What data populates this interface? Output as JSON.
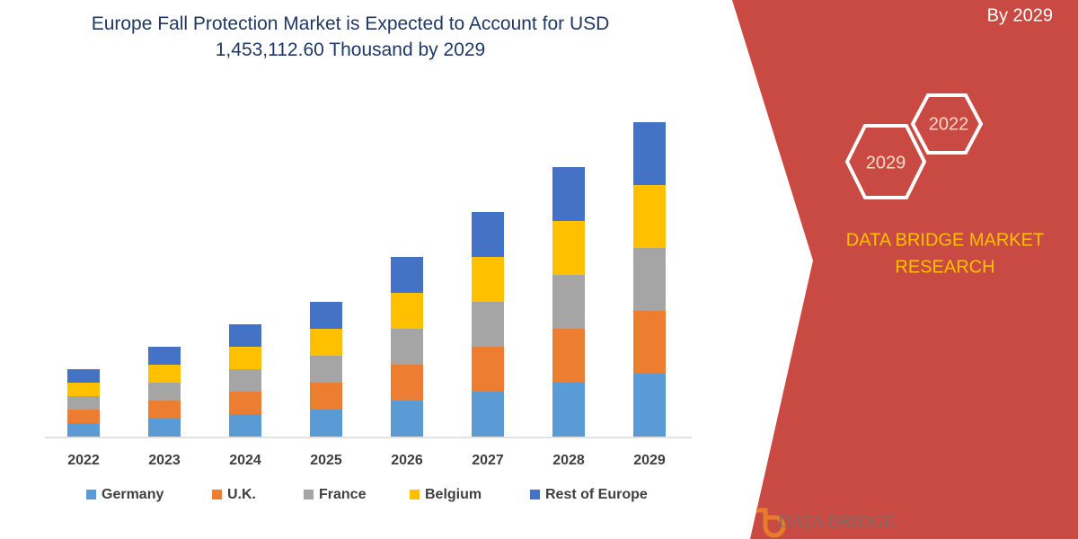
{
  "chart_data": {
    "type": "stacked_bar",
    "title": "Europe Fall Protection Market is Expected to Account for USD 1,453,112.60 Thousand by 2029",
    "categories": [
      "2022",
      "2023",
      "2024",
      "2025",
      "2026",
      "2027",
      "2028",
      "2029"
    ],
    "series": [
      {
        "name": "Germany",
        "color": "#5b9bd5",
        "values": [
          15,
          20,
          25,
          30,
          40,
          50,
          60,
          70
        ]
      },
      {
        "name": "U.K.",
        "color": "#ed7d31",
        "values": [
          15,
          20,
          25,
          30,
          40,
          50,
          60,
          70
        ]
      },
      {
        "name": "France",
        "color": "#a5a5a5",
        "values": [
          15,
          20,
          25,
          30,
          40,
          50,
          60,
          70
        ]
      },
      {
        "name": "Belgium",
        "color": "#ffc000",
        "values": [
          15,
          20,
          25,
          30,
          40,
          50,
          60,
          70
        ]
      },
      {
        "name": "Rest of Europe",
        "color": "#4472c4",
        "values": [
          15,
          20,
          25,
          30,
          40,
          50,
          60,
          70
        ]
      }
    ],
    "ylim": [
      0,
      350
    ],
    "legend": "bottom",
    "side_text": "By 2029",
    "hexagons": [
      "2022",
      "2029"
    ],
    "brand_lines": [
      "DATA BRIDGE MARKET",
      "RESEARCH"
    ],
    "logo_text": "DATA BRIDGE"
  }
}
